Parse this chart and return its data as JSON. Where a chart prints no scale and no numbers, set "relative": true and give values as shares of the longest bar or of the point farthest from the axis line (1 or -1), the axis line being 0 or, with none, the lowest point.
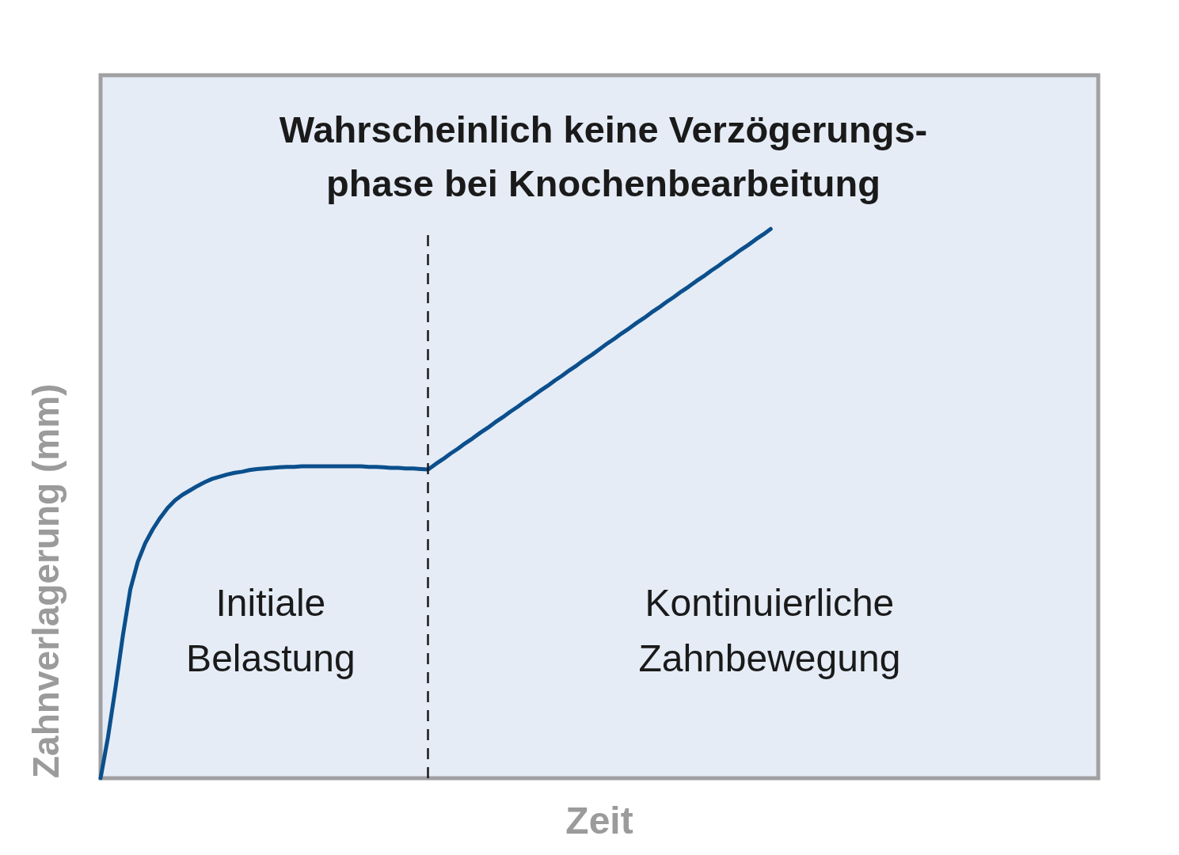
{
  "chart_data": {
    "type": "line",
    "title": "Wahrscheinlich keine Verzögerungs-\nphase bei Knochenbearbeitung",
    "xlabel": "Zeit",
    "ylabel": "Zahnverlagerung (mm)",
    "annotations": [
      "Initiale\nBelastung",
      "Kontinuierliche\nZahnbewegung"
    ],
    "relative": true,
    "categories": [
      null,
      null,
      null,
      null,
      null,
      null,
      null,
      null,
      null,
      null,
      null,
      null,
      null,
      null,
      null,
      null,
      null,
      null,
      null,
      null,
      null,
      null,
      null,
      null,
      null,
      null,
      null,
      null,
      null,
      null,
      null,
      null,
      null,
      null,
      null,
      null,
      null,
      null,
      null,
      null,
      null,
      null,
      null,
      null,
      null,
      null,
      null,
      null,
      null,
      null,
      null,
      null,
      null,
      null,
      null,
      null,
      null,
      null,
      null,
      null,
      null,
      null,
      null,
      null,
      null,
      null,
      null,
      null,
      null,
      null,
      null,
      null,
      null,
      null,
      null,
      null,
      null,
      null,
      null,
      null,
      null,
      null,
      null,
      null,
      null,
      null,
      null,
      null,
      null,
      null,
      null,
      null,
      null,
      null,
      null,
      null,
      null,
      null,
      null,
      null,
      null,
      null,
      null,
      null,
      null,
      null,
      null,
      null,
      null,
      null,
      null,
      null,
      null,
      null,
      null,
      null,
      null,
      null,
      null,
      null,
      null,
      null,
      null,
      null,
      null,
      null,
      null,
      null,
      null,
      null,
      null,
      null,
      null,
      null,
      null
    ],
    "series": [
      {
        "color": "#0b4f8c",
        "values": [
          0,
          0.075,
          0.164,
          0.26,
          0.344,
          0.394,
          0.428,
          0.453,
          0.474,
          0.492,
          0.506,
          0.516,
          0.524,
          0.532,
          0.539,
          0.545,
          0.549,
          0.553,
          0.556,
          0.558,
          0.561,
          0.563,
          0.564,
          0.565,
          0.566,
          0.567,
          0.567,
          0.568,
          0.568,
          0.568,
          0.568,
          0.568,
          0.568,
          0.568,
          0.568,
          0.568,
          0.567,
          0.567,
          0.566,
          0.565,
          0.565,
          0.564,
          0.564,
          0.563,
          0.562,
          0.572,
          0.581,
          0.591,
          0.6,
          0.61,
          0.619,
          0.629,
          0.638,
          0.648,
          0.657,
          0.667,
          0.676,
          0.686,
          0.695,
          0.705,
          0.714,
          0.724,
          0.733,
          0.743,
          0.752,
          0.762,
          0.771,
          0.781,
          0.791,
          0.8,
          0.81,
          0.819,
          0.829,
          0.838,
          0.848,
          0.857,
          0.867,
          0.876,
          0.886,
          0.895,
          0.905,
          0.914,
          0.924,
          0.933,
          0.943,
          0.952,
          0.962,
          0.971,
          0.981,
          0.99,
          1.0,
          null,
          null,
          null,
          null,
          null,
          null,
          null,
          null,
          null,
          null,
          null,
          null,
          null,
          null,
          null,
          null,
          null,
          null,
          null,
          null,
          null,
          null,
          null,
          null,
          null,
          null,
          null,
          null,
          null,
          null,
          null,
          null,
          null,
          null,
          null,
          null,
          null,
          null,
          null,
          null,
          null,
          null,
          null,
          null
        ]
      }
    ]
  }
}
